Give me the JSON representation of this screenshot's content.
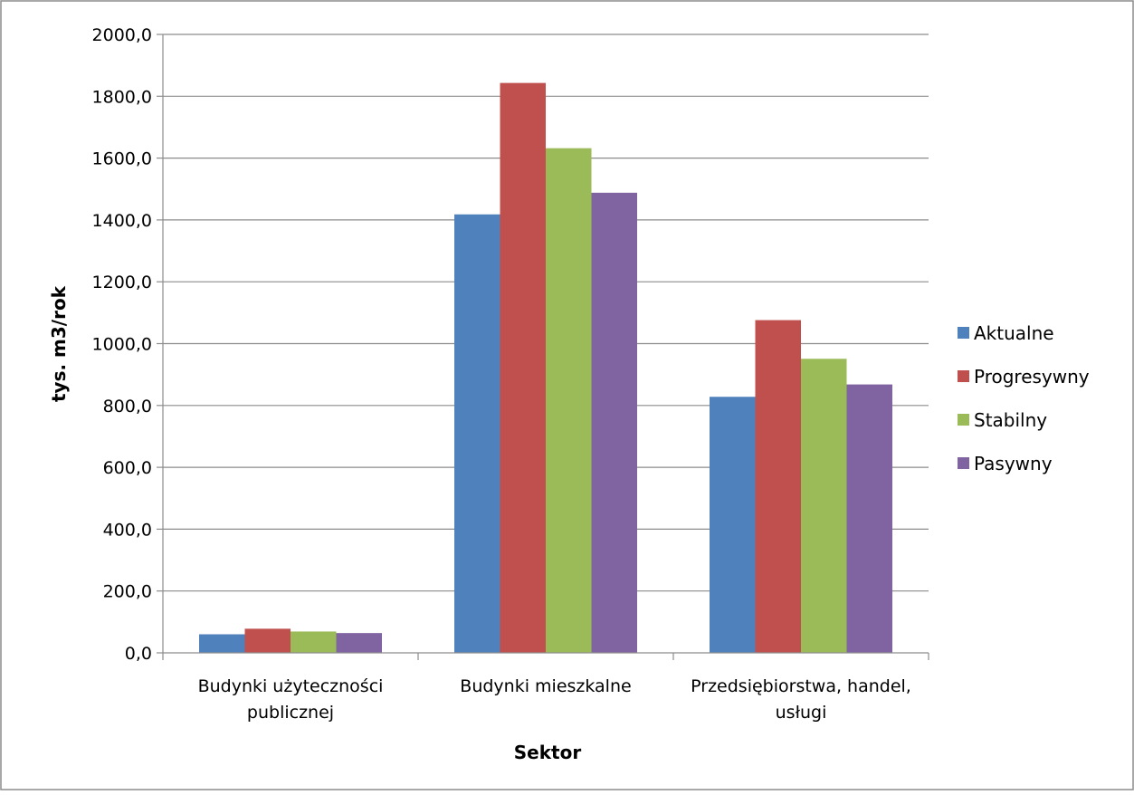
{
  "chart_data": {
    "type": "bar",
    "title": "",
    "xlabel": "Sektor",
    "ylabel": "tys. m3/rok",
    "ylim": [
      0,
      2000
    ],
    "yticks": [
      "0,0",
      "200,0",
      "400,0",
      "600,0",
      "800,0",
      "1000,0",
      "1200,0",
      "1400,0",
      "1600,0",
      "1800,0",
      "2000,0"
    ],
    "grid": true,
    "legend_position": "right",
    "categories": [
      [
        "Budynki użyteczności",
        "publicznej"
      ],
      [
        "Budynki mieszkalne"
      ],
      [
        "Przedsiębiorstwa, handel,",
        "usługi"
      ]
    ],
    "series": [
      {
        "name": "Aktualne",
        "color": "#4F81BD",
        "values": [
          60,
          1418,
          828
        ]
      },
      {
        "name": "Progresywny",
        "color": "#C0504D",
        "values": [
          78,
          1843,
          1076
        ]
      },
      {
        "name": "Stabilny",
        "color": "#9BBB59",
        "values": [
          69,
          1632,
          951
        ]
      },
      {
        "name": "Pasywny",
        "color": "#8064A2",
        "values": [
          64,
          1488,
          868
        ]
      }
    ]
  }
}
